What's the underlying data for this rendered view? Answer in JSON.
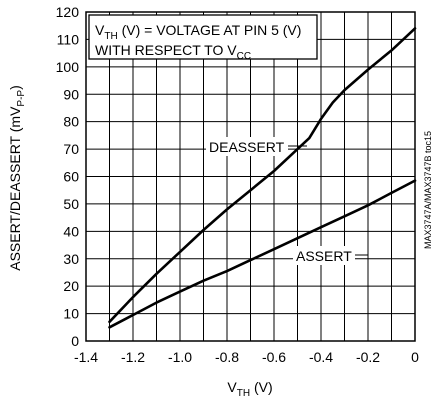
{
  "chart_data": {
    "type": "line",
    "xlabel": {
      "main": "V",
      "sub": "TH",
      "tail": " (V)"
    },
    "ylabel": {
      "main": "ASSERT/DEASSERT (mV",
      "sub": "P-P",
      "tail": ")"
    },
    "xlim": [
      -1.4,
      0
    ],
    "ylim": [
      0,
      120
    ],
    "x_ticks": [
      {
        "value": -1.4,
        "label": "-1.4"
      },
      {
        "value": -1.2,
        "label": "-1.2"
      },
      {
        "value": -1.0,
        "label": "-1.0"
      },
      {
        "value": -0.8,
        "label": "-0.8"
      },
      {
        "value": -0.6,
        "label": "-0.6"
      },
      {
        "value": -0.4,
        "label": "-0.4"
      },
      {
        "value": -0.2,
        "label": "-0.2"
      },
      {
        "value": 0,
        "label": "0"
      }
    ],
    "y_ticks": [
      {
        "value": 0,
        "label": "0"
      },
      {
        "value": 10,
        "label": "10"
      },
      {
        "value": 20,
        "label": "20"
      },
      {
        "value": 30,
        "label": "30"
      },
      {
        "value": 40,
        "label": "40"
      },
      {
        "value": 50,
        "label": "50"
      },
      {
        "value": 60,
        "label": "60"
      },
      {
        "value": 70,
        "label": "70"
      },
      {
        "value": 80,
        "label": "80"
      },
      {
        "value": 90,
        "label": "90"
      },
      {
        "value": 100,
        "label": "100"
      },
      {
        "value": 110,
        "label": "110"
      },
      {
        "value": 120,
        "label": "120"
      }
    ],
    "grid": true,
    "legend_note": {
      "line1": {
        "a": "V",
        "a_sub": "TH",
        "b": " (V) = VOLTAGE AT PIN 5 (V)"
      },
      "line2": {
        "a": "WITH RESPECT TO V",
        "a_sub": "CC"
      }
    },
    "side_label": "MAX3747A/MAX3747B toc15",
    "series": [
      {
        "name": "DEASSERT",
        "x": [
          -1.3,
          -1.2,
          -1.1,
          -1.0,
          -0.9,
          -0.8,
          -0.7,
          -0.6,
          -0.5,
          -0.45,
          -0.4,
          -0.35,
          -0.3,
          -0.2,
          -0.1,
          0
        ],
        "values": [
          7,
          16,
          24.5,
          32.5,
          40.5,
          48,
          55,
          62,
          70,
          74,
          81,
          87,
          91.5,
          99,
          106,
          114
        ]
      },
      {
        "name": "ASSERT",
        "x": [
          -1.3,
          -1.2,
          -1.1,
          -1.0,
          -0.9,
          -0.8,
          -0.7,
          -0.6,
          -0.5,
          -0.4,
          -0.3,
          -0.2,
          -0.1,
          0
        ],
        "values": [
          5,
          9.5,
          14,
          18,
          22,
          25.5,
          29.5,
          33.5,
          37.5,
          41.5,
          45.5,
          49.5,
          54,
          58.5
        ]
      }
    ]
  }
}
